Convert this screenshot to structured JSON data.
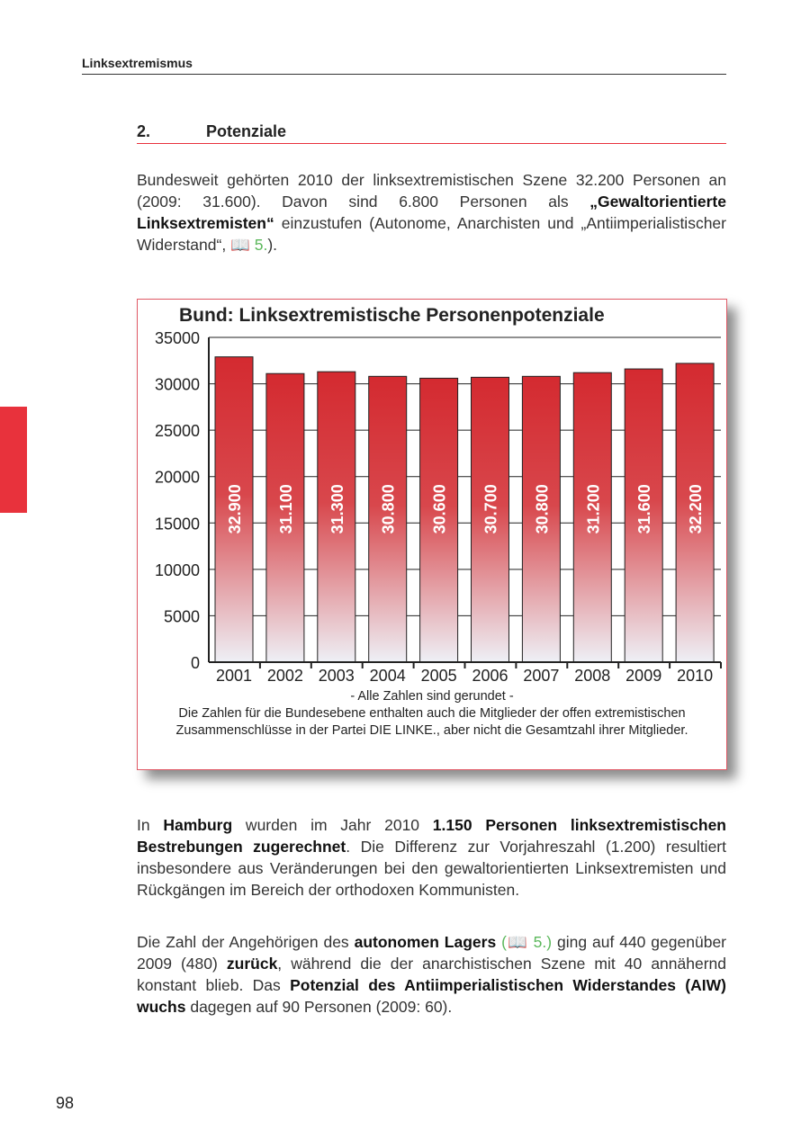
{
  "header": "Linksextremismus",
  "section": {
    "number": "2.",
    "title": "Potenziale"
  },
  "para1": {
    "a": "Bundesweit gehörten 2010 der linksextremistischen Szene 32.200 Personen an (2009: 31.600). Davon sind 6.800 Personen als ",
    "b": "„Gewaltorientierte Linksextremisten“",
    "c": " einzustufen (Autonome, Anarchisten und „Antiimperialistischer Widerstand“, ",
    "ref": "📖 5.",
    "d": ")."
  },
  "chart_data": {
    "type": "bar",
    "title": "Bund: Linksextremistische Personenpotenziale",
    "categories": [
      "2001",
      "2002",
      "2003",
      "2004",
      "2005",
      "2006",
      "2007",
      "2008",
      "2009",
      "2010"
    ],
    "values": [
      32900,
      31100,
      31300,
      30800,
      30600,
      30700,
      30800,
      31200,
      31600,
      32200
    ],
    "data_labels": [
      "32.900",
      "31.100",
      "31.300",
      "30.800",
      "30.600",
      "30.700",
      "30.800",
      "31.200",
      "31.600",
      "32.200"
    ],
    "ylim": [
      0,
      35000
    ],
    "yticks": [
      "0",
      "5000",
      "10000",
      "15000",
      "20000",
      "25000",
      "30000",
      "35000"
    ],
    "grid": true,
    "bar_color": "#d42a30"
  },
  "chart_notes": [
    "- Alle Zahlen sind gerundet -",
    "Die Zahlen für die Bundesebene enthalten auch die Mitglieder der offen extremistischen Zusammenschlüsse in der Partei DIE LINKE., aber nicht die Gesamtzahl ihrer Mitglieder."
  ],
  "para2": {
    "a": "In ",
    "b": "Hamburg",
    "c": " wurden im Jahr 2010 ",
    "d": "1.150 Personen linksextremistischen Bestrebungen zugerechnet",
    "e": ". Die Differenz zur Vorjahreszahl (1.200) resultiert insbesondere aus Veränderungen bei den gewaltorientierten Linksextremisten und Rückgängen im Bereich der orthodoxen Kommunisten."
  },
  "para3": {
    "a": "Die Zahl der Angehörigen des ",
    "b": "autonomen Lagers",
    "ref": "(📖 5.)",
    "c": " ging auf 440 gegenüber 2009 (480) ",
    "d": "zurück",
    "e": ", während die der anarchistischen Szene mit 40 annähernd konstant blieb. Das ",
    "f": "Potenzial des Antiimperialistischen Widerstandes (AIW) wuchs",
    "g": " dagegen auf 90 Personen (2009: 60)."
  },
  "page_number": "98"
}
